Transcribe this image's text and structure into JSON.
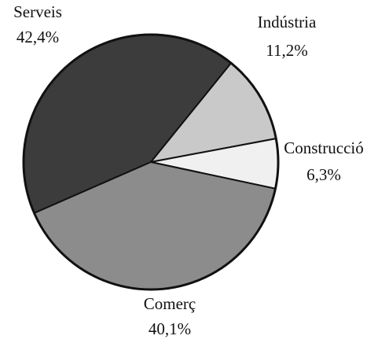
{
  "chart_data": {
    "type": "pie",
    "categories": [
      "Serveis",
      "Indústria",
      "Construcció",
      "Comerç"
    ],
    "values": [
      42.4,
      11.2,
      6.3,
      40.1
    ],
    "value_labels": [
      "42,4%",
      "11,2%",
      "6,3%",
      "40,1%"
    ],
    "colors": [
      "#3c3c3c",
      "#c9c9c9",
      "#f0f0f0",
      "#8c8c8c"
    ]
  }
}
